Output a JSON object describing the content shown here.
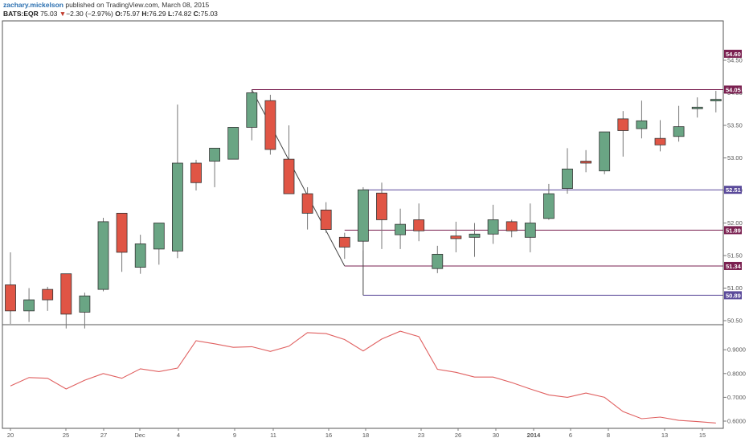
{
  "header": {
    "author": "zachary.mickelson",
    "published": "published on TradingView.com, March 08, 2015",
    "symbol": "BATS:EQR",
    "last": "75.03",
    "change_arrow": "▼",
    "change": "−2.30 (−2.97%)",
    "o_label": "O:",
    "o": "75.97",
    "h_label": "H:",
    "h": "76.29",
    "l_label": "L:",
    "l": "74.82",
    "c_label": "C:",
    "c": "75.03"
  },
  "colors": {
    "up": "#6aa584",
    "down": "#e05545",
    "border": "#555555",
    "level_maroon": "#7a2050",
    "level_purple": "#5a4a9a",
    "line_red": "#e06060",
    "trend": "#444444"
  },
  "chart_data": [
    {
      "type": "candlestick",
      "y_ticks": [
        "50.50",
        "51.00",
        "51.50",
        "52.00",
        "52.50",
        "53.00",
        "53.50",
        "54.00",
        "54.50"
      ],
      "ylim": [
        50.25,
        54.95
      ],
      "x_ticks": [
        "20",
        "25",
        "27",
        "Dec",
        "4",
        "9",
        "11",
        "16",
        "18",
        "23",
        "26",
        "30",
        "2014",
        "6",
        "8",
        "13",
        "15"
      ],
      "candles": [
        {
          "o": 51.05,
          "h": 51.55,
          "l": 50.45,
          "c": 50.65
        },
        {
          "o": 50.65,
          "h": 51.0,
          "l": 50.48,
          "c": 50.82
        },
        {
          "o": 50.98,
          "h": 51.02,
          "l": 50.65,
          "c": 50.82
        },
        {
          "o": 51.22,
          "h": 51.22,
          "l": 50.38,
          "c": 50.6
        },
        {
          "o": 50.63,
          "h": 50.93,
          "l": 50.38,
          "c": 50.88
        },
        {
          "o": 50.98,
          "h": 52.08,
          "l": 50.95,
          "c": 52.02
        },
        {
          "o": 52.15,
          "h": 52.15,
          "l": 51.25,
          "c": 51.55
        },
        {
          "o": 51.32,
          "h": 51.82,
          "l": 51.22,
          "c": 51.68
        },
        {
          "o": 51.6,
          "h": 51.98,
          "l": 51.36,
          "c": 52.0
        },
        {
          "o": 51.57,
          "h": 53.82,
          "l": 51.46,
          "c": 52.92
        },
        {
          "o": 52.92,
          "h": 52.97,
          "l": 52.5,
          "c": 52.62
        },
        {
          "o": 52.95,
          "h": 53.12,
          "l": 52.55,
          "c": 53.15
        },
        {
          "o": 52.98,
          "h": 53.43,
          "l": 52.98,
          "c": 53.47
        },
        {
          "o": 53.47,
          "h": 54.05,
          "l": 53.27,
          "c": 54.0
        },
        {
          "o": 53.88,
          "h": 53.97,
          "l": 53.05,
          "c": 53.13
        },
        {
          "o": 52.98,
          "h": 53.5,
          "l": 52.48,
          "c": 52.45
        },
        {
          "o": 52.45,
          "h": 52.55,
          "l": 51.9,
          "c": 52.15
        },
        {
          "o": 52.2,
          "h": 52.32,
          "l": 51.85,
          "c": 51.9
        },
        {
          "o": 51.78,
          "h": 51.85,
          "l": 51.45,
          "c": 51.63
        },
        {
          "o": 51.72,
          "h": 52.55,
          "l": 51.58,
          "c": 52.51
        },
        {
          "o": 52.46,
          "h": 52.62,
          "l": 51.6,
          "c": 52.05
        },
        {
          "o": 51.82,
          "h": 52.22,
          "l": 51.6,
          "c": 51.98
        },
        {
          "o": 52.05,
          "h": 52.3,
          "l": 51.72,
          "c": 51.88
        },
        {
          "o": 51.3,
          "h": 51.65,
          "l": 51.23,
          "c": 51.52
        },
        {
          "o": 51.8,
          "h": 52.02,
          "l": 51.55,
          "c": 51.76
        },
        {
          "o": 51.78,
          "h": 52.0,
          "l": 51.48,
          "c": 51.83
        },
        {
          "o": 51.83,
          "h": 52.28,
          "l": 51.68,
          "c": 52.05
        },
        {
          "o": 52.02,
          "h": 52.05,
          "l": 51.78,
          "c": 51.88
        },
        {
          "o": 51.78,
          "h": 52.3,
          "l": 51.55,
          "c": 52.0
        },
        {
          "o": 52.07,
          "h": 52.6,
          "l": 52.05,
          "c": 52.45
        },
        {
          "o": 52.53,
          "h": 53.15,
          "l": 52.45,
          "c": 52.83
        },
        {
          "o": 52.95,
          "h": 53.12,
          "l": 52.78,
          "c": 52.92
        },
        {
          "o": 52.8,
          "h": 53.4,
          "l": 52.75,
          "c": 53.4
        },
        {
          "o": 53.6,
          "h": 53.72,
          "l": 53.02,
          "c": 53.42
        },
        {
          "o": 53.45,
          "h": 53.88,
          "l": 53.3,
          "c": 53.57
        },
        {
          "o": 53.3,
          "h": 53.58,
          "l": 53.1,
          "c": 53.2
        },
        {
          "o": 53.33,
          "h": 53.8,
          "l": 53.25,
          "c": 53.48
        },
        {
          "o": 53.76,
          "h": 53.93,
          "l": 53.62,
          "c": 53.78
        },
        {
          "o": 53.88,
          "h": 54.03,
          "l": 53.7,
          "c": 53.9
        }
      ],
      "levels": [
        {
          "value": "54.60",
          "color": "maroon",
          "line": false
        },
        {
          "value": "54.05",
          "color": "maroon",
          "line": true,
          "from_index": 13
        },
        {
          "value": "52.51",
          "color": "purple",
          "line": true,
          "from_index": 19
        },
        {
          "value": "51.89",
          "color": "maroon",
          "line": true,
          "from_index": 18
        },
        {
          "value": "51.34",
          "color": "maroon",
          "line": true,
          "from_index": 18
        },
        {
          "value": "50.89",
          "color": "purple",
          "line": true,
          "from_index": 19
        }
      ],
      "trendlines": [
        {
          "from_index": 13,
          "from_value": 54.05,
          "to_index": 18,
          "to_value": 51.34
        },
        {
          "from_index": 19,
          "from_value": 52.51,
          "to_index": 19,
          "to_value": 50.89
        }
      ]
    },
    {
      "type": "line",
      "y_ticks": [
        "0.6000",
        "0.7000",
        "0.8000",
        "0.9000"
      ],
      "ylim": [
        0.575,
        1.0
      ],
      "values": [
        0.748,
        0.783,
        0.78,
        0.735,
        0.772,
        0.8,
        0.78,
        0.82,
        0.808,
        0.823,
        0.938,
        0.925,
        0.91,
        0.913,
        0.893,
        0.915,
        0.972,
        0.968,
        0.943,
        0.895,
        0.945,
        0.978,
        0.955,
        0.818,
        0.805,
        0.785,
        0.785,
        0.762,
        0.735,
        0.71,
        0.7,
        0.718,
        0.7,
        0.64,
        0.61,
        0.617,
        0.603,
        0.598,
        0.592
      ]
    }
  ]
}
